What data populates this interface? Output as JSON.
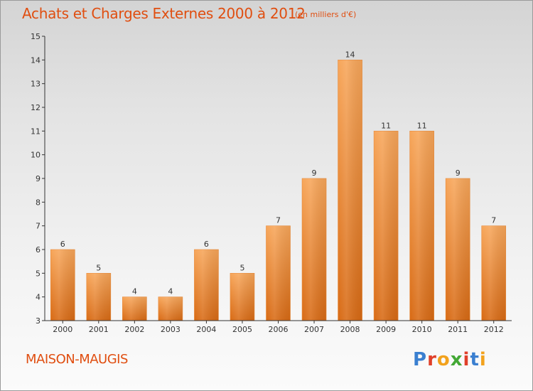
{
  "header": {
    "title": "Achats et Charges Externes 2000 à 2012",
    "subtitle": "(en milliers d'€)"
  },
  "footer": {
    "commune": "MAISON-MAUGIS",
    "logo_letters": [
      "P",
      "r",
      "o",
      "x",
      "i",
      "t",
      "i"
    ],
    "logo_colors": [
      "#3a7fd0",
      "#e0402a",
      "#f2a21d",
      "#43a835",
      "#e0402a",
      "#3a7fd0",
      "#f2a21d"
    ]
  },
  "colors": {
    "bar_top": "#f7a65a",
    "bar_bottom": "#d86a14",
    "axis": "#333333",
    "title": "#e04e10"
  },
  "chart_data": {
    "type": "bar",
    "title": "Achats et Charges Externes 2000 à 2012",
    "subtitle": "(en milliers d'€)",
    "xlabel": "",
    "ylabel": "",
    "categories": [
      "2000",
      "2001",
      "2002",
      "2003",
      "2004",
      "2005",
      "2006",
      "2007",
      "2008",
      "2009",
      "2010",
      "2011",
      "2012"
    ],
    "values": [
      6,
      5,
      4,
      4,
      6,
      5,
      7,
      9,
      14,
      11,
      11,
      9,
      7
    ],
    "data_labels": [
      "6",
      "5",
      "4",
      "4",
      "6",
      "5",
      "7",
      "9",
      "14",
      "11",
      "11",
      "9",
      "7"
    ],
    "ylim": [
      3,
      15
    ],
    "yticks": [
      3,
      4,
      5,
      6,
      7,
      8,
      9,
      10,
      11,
      12,
      13,
      14,
      15
    ],
    "grid": false,
    "legend": "none"
  }
}
